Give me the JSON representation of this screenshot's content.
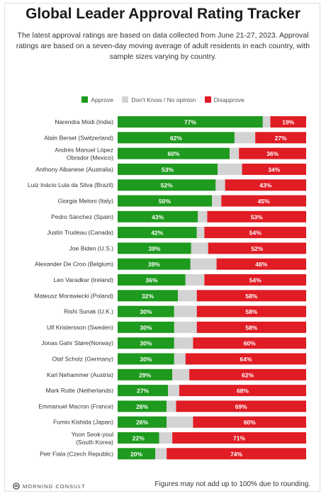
{
  "header": {
    "title": "Global Leader Approval Rating Tracker",
    "subtitle": "The latest approval ratings are based on data collected from June 21-27, 2023. Approval ratings are based on a seven-day moving average of adult residents in each country, with sample sizes varying by country."
  },
  "legend": {
    "approve": "Approve",
    "dont_know": "Don't Know / No opinion",
    "disapprove": "Disapprove"
  },
  "colors": {
    "approve": "#1e9a1e",
    "dont_know": "#d3d3d3",
    "disapprove": "#e01c24"
  },
  "footer": {
    "logo_text": "MORNING CONSULT",
    "note": "Figures may not add up to 100% due to rounding."
  },
  "chart_data": {
    "type": "bar",
    "stacked": true,
    "orientation": "horizontal",
    "categories": [
      [
        "Narendra Modi (India)"
      ],
      [
        "Alain Berset (Switzerland)"
      ],
      [
        "Andrés Manuel López",
        "Obrador (Mexico)"
      ],
      [
        "Anthony Albanese (Australia)"
      ],
      [
        "Luiz Inácio Lula da Silva (Brazil)"
      ],
      [
        "Giorgia Meloni (Italy)"
      ],
      [
        "Pedro Sánchez (Spain)"
      ],
      [
        "Justin Trudeau (Canada)"
      ],
      [
        "Joe Biden (U.S.)"
      ],
      [
        "Alexander De Croo (Belgium)"
      ],
      [
        "Leo Varadkar (Ireland)"
      ],
      [
        "Mateusz Morawiecki (Poland)"
      ],
      [
        "Rishi Sunak (U.K.)"
      ],
      [
        "Ulf Kristersson (Sweden)"
      ],
      [
        "Jonas Gahr Støre(Norway)"
      ],
      [
        "Olaf Scholz (Germany)"
      ],
      [
        "Karl Nehammer (Austria)"
      ],
      [
        "Mark Rutte (Netherlands)"
      ],
      [
        "Emmanuel Macron (France)"
      ],
      [
        "Fumio Kishida (Japan)"
      ],
      [
        "Yoon Seok-youl",
        "(South Korea)"
      ],
      [
        "Petr Fiala (Czech Republic)"
      ]
    ],
    "series": [
      {
        "name": "Approve",
        "values": [
          77,
          62,
          60,
          53,
          52,
          50,
          43,
          42,
          39,
          39,
          36,
          32,
          30,
          30,
          30,
          30,
          29,
          27,
          26,
          26,
          22,
          20
        ]
      },
      {
        "name": "Don't Know / No opinion",
        "values": [
          4,
          11,
          5,
          13,
          5,
          5,
          5,
          4,
          9,
          14,
          10,
          10,
          12,
          12,
          10,
          6,
          9,
          6,
          5,
          14,
          7,
          6
        ]
      },
      {
        "name": "Disapprove",
        "values": [
          19,
          27,
          36,
          34,
          43,
          45,
          53,
          54,
          52,
          48,
          54,
          58,
          58,
          58,
          60,
          64,
          62,
          68,
          69,
          60,
          71,
          74
        ]
      }
    ],
    "labels": {
      "approve": [
        "77%",
        "62%",
        "60%",
        "53%",
        "52%",
        "50%",
        "43%",
        "42%",
        "39%",
        "39%",
        "36%",
        "32%",
        "30%",
        "30%",
        "30%",
        "30%",
        "29%",
        "27%",
        "26%",
        "26%",
        "22%",
        "20%"
      ],
      "disapprove": [
        "19%",
        "27%",
        "36%",
        "34%",
        "43%",
        "45%",
        "53%",
        "54%",
        "52%",
        "48%",
        "54%",
        "58%",
        "58%",
        "58%",
        "60%",
        "64%",
        "62%",
        "68%",
        "69%",
        "60%",
        "71%",
        "74%"
      ]
    },
    "xlim": [
      0,
      100
    ],
    "legend_position": "top",
    "grid": false
  }
}
